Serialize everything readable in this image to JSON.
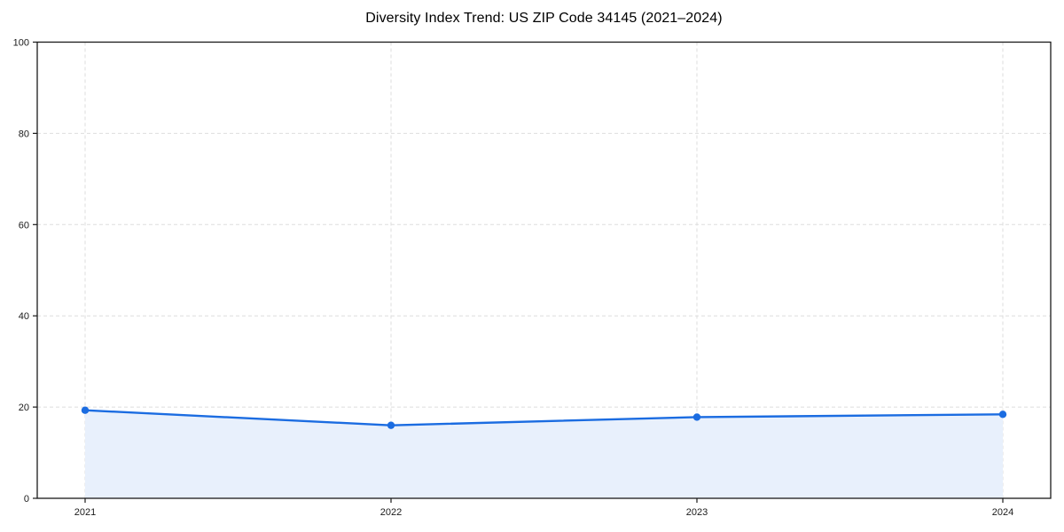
{
  "chart_data": {
    "type": "line",
    "title": "Diversity Index Trend: US ZIP Code 34145 (2021–2024)",
    "categories": [
      "2021",
      "2022",
      "2023",
      "2024"
    ],
    "series": [
      {
        "name": "Diversity Index",
        "values": [
          19.3,
          16.0,
          17.8,
          18.4
        ]
      }
    ],
    "xlabel": "",
    "ylabel": "",
    "ylim": [
      0,
      100
    ],
    "yticks": [
      0,
      20,
      40,
      60,
      80,
      100
    ],
    "grid": "dashed, horizontal and vertical",
    "legend_position": "none",
    "area_fill": true,
    "marker": "circle",
    "colors": {
      "line": "#1b6ce1",
      "marker": "#1b6ce1",
      "area_fill": "#e8f0fc",
      "grid": "#dedede",
      "spine": "#1a1a1a",
      "tick_label": "#1a1a1a",
      "title": "#000000"
    }
  }
}
